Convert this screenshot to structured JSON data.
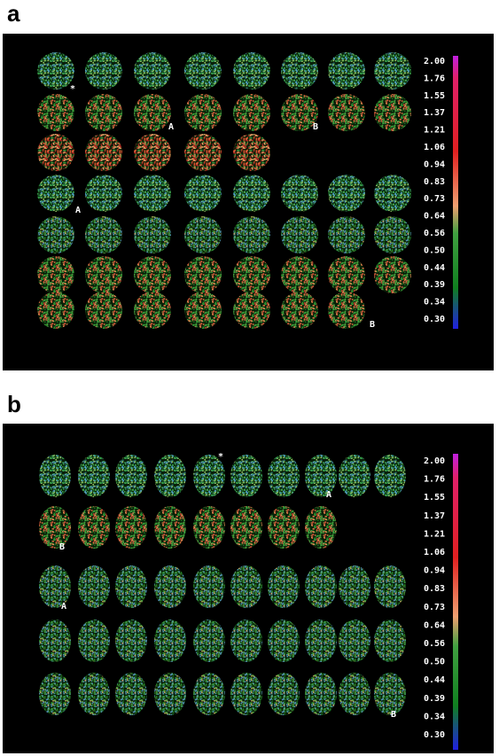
{
  "panels": [
    {
      "label": "a",
      "scale_labels": [
        "2.00",
        "1.76",
        "1.55",
        "1.37",
        "1.21",
        "1.06",
        "0.94",
        "0.83",
        "0.73",
        "0.64",
        "0.56",
        "0.50",
        "0.44",
        "0.39",
        "0.34",
        "0.30"
      ],
      "markers": [
        "*",
        "A",
        "B",
        "A",
        "B"
      ]
    },
    {
      "label": "b",
      "scale_labels": [
        "2.00",
        "1.76",
        "1.55",
        "1.37",
        "1.21",
        "1.06",
        "0.94",
        "0.83",
        "0.73",
        "0.64",
        "0.56",
        "0.50",
        "0.44",
        "0.39",
        "0.34",
        "0.30"
      ],
      "markers": [
        "*",
        "A",
        "B",
        "A",
        "B"
      ]
    }
  ]
}
